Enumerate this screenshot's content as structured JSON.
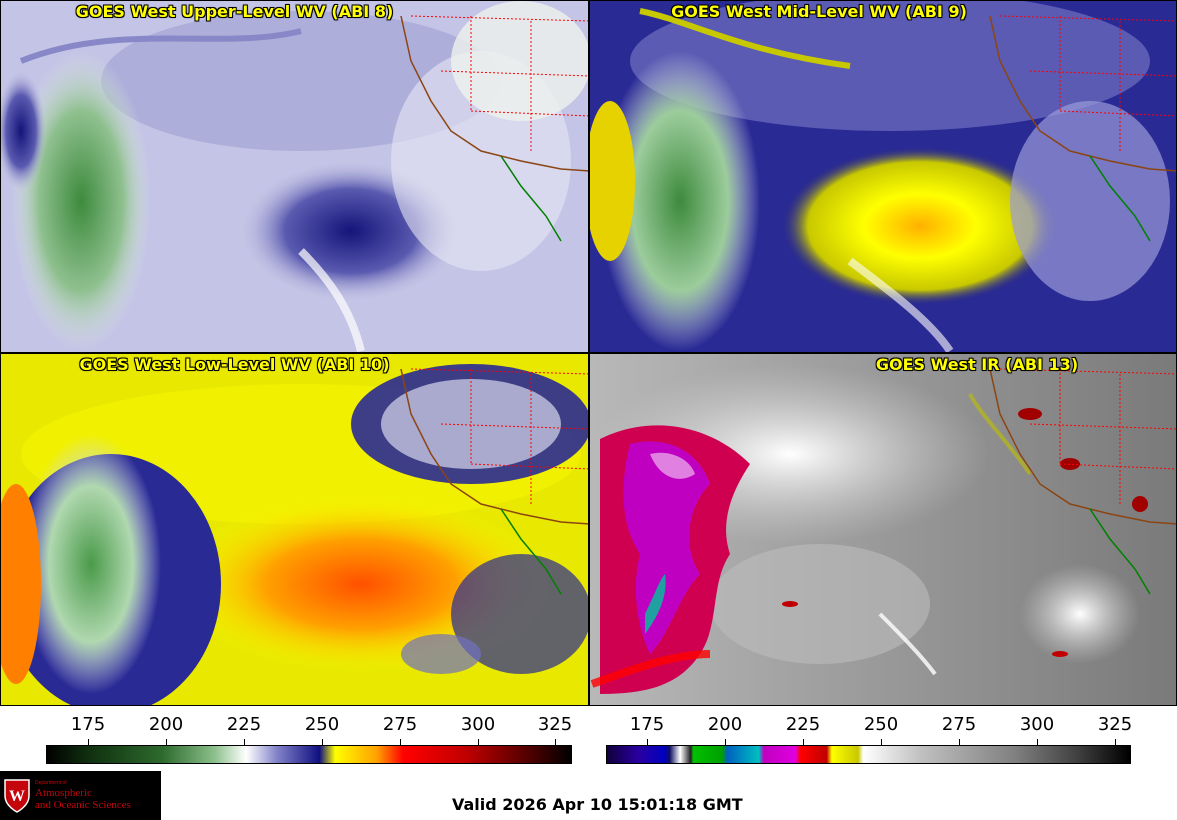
{
  "panels": [
    {
      "title": "GOES West Upper-Level WV (ABI 8)"
    },
    {
      "title": "GOES West Mid-Level WV (ABI 9)"
    },
    {
      "title": "GOES West Low-Level WV (ABI 10)"
    },
    {
      "title": "GOES West IR (ABI 13)"
    }
  ],
  "colorbars": {
    "wv_ticks": [
      "175",
      "200",
      "225",
      "250",
      "275",
      "300",
      "325"
    ],
    "ir_ticks": [
      "175",
      "200",
      "225",
      "250",
      "275",
      "300",
      "325"
    ]
  },
  "logo": {
    "department": "Department of",
    "line1": "Atmospheric",
    "line2": "and Oceanic Sciences"
  },
  "valid_time": "Valid 2026 Apr 10 15:01:18 GMT",
  "colors": {
    "title_text": "#ffff00",
    "state_borders": "#ff0000",
    "coastline": "#8b4513",
    "mexico_coast": "#008000"
  }
}
